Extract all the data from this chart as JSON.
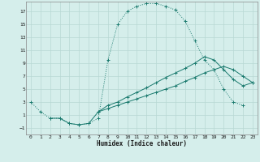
{
  "xlabel": "Humidex (Indice chaleur)",
  "xlim": [
    -0.5,
    23.5
  ],
  "ylim": [
    -2,
    18.5
  ],
  "xticks": [
    0,
    1,
    2,
    3,
    4,
    5,
    6,
    7,
    8,
    9,
    10,
    11,
    12,
    13,
    14,
    15,
    16,
    17,
    18,
    19,
    20,
    21,
    22,
    23
  ],
  "yticks": [
    -1,
    1,
    3,
    5,
    7,
    9,
    11,
    13,
    15,
    17
  ],
  "bg_color": "#d5eeeb",
  "grid_color": "#b8d8d4",
  "line_color": "#1a7a6e",
  "line1_x": [
    0,
    1,
    2,
    3,
    4,
    5,
    6,
    7,
    8,
    9,
    10,
    11,
    12,
    13,
    14,
    15,
    16,
    17,
    18,
    19,
    20,
    21,
    22
  ],
  "line1_y": [
    3.0,
    1.5,
    0.5,
    0.5,
    -0.3,
    -0.5,
    -0.3,
    0.5,
    9.5,
    15.0,
    17.0,
    17.8,
    18.2,
    18.2,
    17.8,
    17.2,
    15.5,
    12.5,
    9.5,
    8.0,
    5.0,
    3.0,
    2.5
  ],
  "line2_x": [
    7,
    8,
    9,
    10,
    11,
    12,
    13,
    14,
    15,
    16,
    17,
    18,
    19,
    20,
    21,
    22,
    23
  ],
  "line2_y": [
    1.5,
    2.0,
    2.5,
    3.0,
    3.5,
    4.0,
    4.5,
    5.0,
    5.5,
    6.2,
    6.8,
    7.5,
    8.0,
    8.5,
    8.0,
    7.0,
    6.0
  ],
  "line3_x": [
    2,
    3,
    4,
    5,
    6,
    7,
    8,
    9,
    10,
    11,
    12,
    13,
    14,
    15,
    16,
    17,
    18,
    19,
    20,
    21,
    22,
    23
  ],
  "line3_y": [
    0.5,
    0.5,
    -0.3,
    -0.5,
    -0.3,
    1.5,
    2.5,
    3.0,
    3.8,
    4.5,
    5.2,
    6.0,
    6.8,
    7.5,
    8.2,
    9.0,
    10.0,
    9.5,
    8.0,
    6.5,
    5.5,
    6.0
  ]
}
